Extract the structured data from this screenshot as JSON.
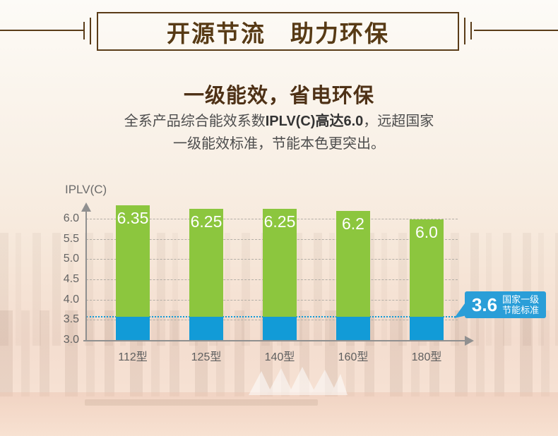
{
  "header": {
    "title": "开源节流　助力环保"
  },
  "section": {
    "subtitle": "一级能效，省电环保",
    "desc_line1_a": "全系产品综合能效系数",
    "desc_line1_b": "IPLV(C)高达6.0",
    "desc_line1_c": "，远超国家",
    "desc_line2": "一级能效标准，节能本色更突出。"
  },
  "chart_data": {
    "type": "bar",
    "title": "",
    "xlabel": "",
    "ylabel": "IPLV(C)",
    "categories": [
      "112型",
      "125型",
      "140型",
      "160型",
      "180型"
    ],
    "values": [
      6.35,
      6.25,
      6.25,
      6.2,
      6.0
    ],
    "value_labels": [
      "6.35",
      "6.25",
      "6.25",
      "6.2",
      "6.0"
    ],
    "yticks": [
      6.0,
      5.5,
      5.0,
      4.5,
      4.0,
      3.5,
      3.0
    ],
    "ytick_labels": [
      "6.0",
      "5.5",
      "5.0",
      "4.5",
      "4.0",
      "3.5",
      "3.0"
    ],
    "ylim": [
      3.0,
      6.5
    ],
    "baseline": 3.0,
    "grid": true,
    "legend": false,
    "threshold": {
      "value": 3.6,
      "label_value": "3.6",
      "label_line1": "国家一级",
      "label_line2": "节能标准"
    },
    "colors": {
      "bar_green": "#8cc63e",
      "bar_blue": "#129bd7",
      "threshold_line": "#129bd7",
      "callout_bg": "#2a9ed8",
      "grid_line": "#b3aea6",
      "axis": "#909090",
      "tick_text": "#636363",
      "value_text": "#ffffff",
      "title_brown": "#573a15"
    }
  }
}
